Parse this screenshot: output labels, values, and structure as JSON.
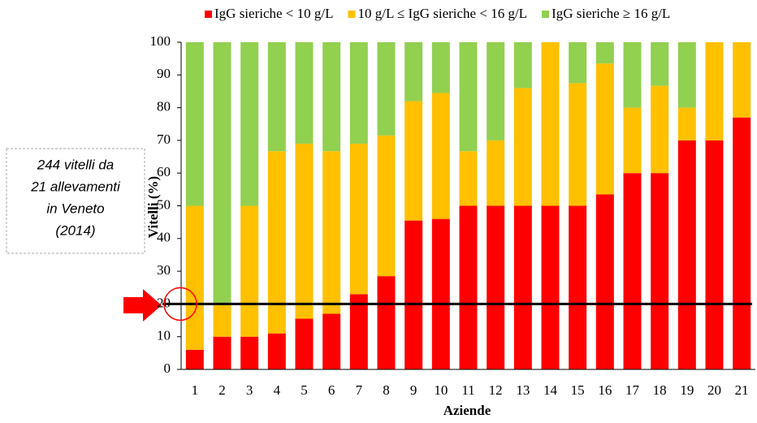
{
  "chart_data": {
    "type": "stacked_bar",
    "categories": [
      "1",
      "2",
      "3",
      "4",
      "5",
      "6",
      "7",
      "8",
      "9",
      "10",
      "11",
      "12",
      "13",
      "14",
      "15",
      "16",
      "17",
      "18",
      "19",
      "20",
      "21"
    ],
    "series": [
      {
        "name": "IgG sieriche < 10 g/L",
        "color": "#ff0000",
        "values": [
          6,
          10,
          10,
          11,
          15.5,
          17,
          23,
          28.5,
          45.5,
          46,
          50,
          50,
          50,
          50,
          50,
          53.5,
          60,
          60,
          70,
          70,
          77
        ]
      },
      {
        "name": "10 g/L ≤ IgG sieriche < 16 g/L",
        "color": "#ffc000",
        "values": [
          44,
          10,
          40,
          55.7,
          53.5,
          49.7,
          46,
          43,
          36.5,
          38.5,
          16.7,
          20,
          36,
          50,
          37.5,
          40,
          20,
          26.7,
          10,
          30,
          23
        ]
      },
      {
        "name": "IgG sieriche ≥ 16 g/L",
        "color": "#92d050",
        "values": [
          50,
          80,
          50,
          33.3,
          31,
          33.3,
          31,
          28.5,
          18,
          15.5,
          33.3,
          30,
          14,
          0,
          12.5,
          6.5,
          20,
          13.3,
          20,
          0,
          0
        ]
      }
    ],
    "ylabel": "Vitelli (%)",
    "xlabel": "Aziende",
    "ylim": [
      0,
      100
    ],
    "yticks": [
      0,
      10,
      20,
      30,
      40,
      50,
      60,
      70,
      80,
      90,
      100
    ],
    "reference_line": 20,
    "annotation": [
      "244 vitelli da",
      "21 allevamenti",
      "in Veneto",
      "(2014)"
    ]
  }
}
